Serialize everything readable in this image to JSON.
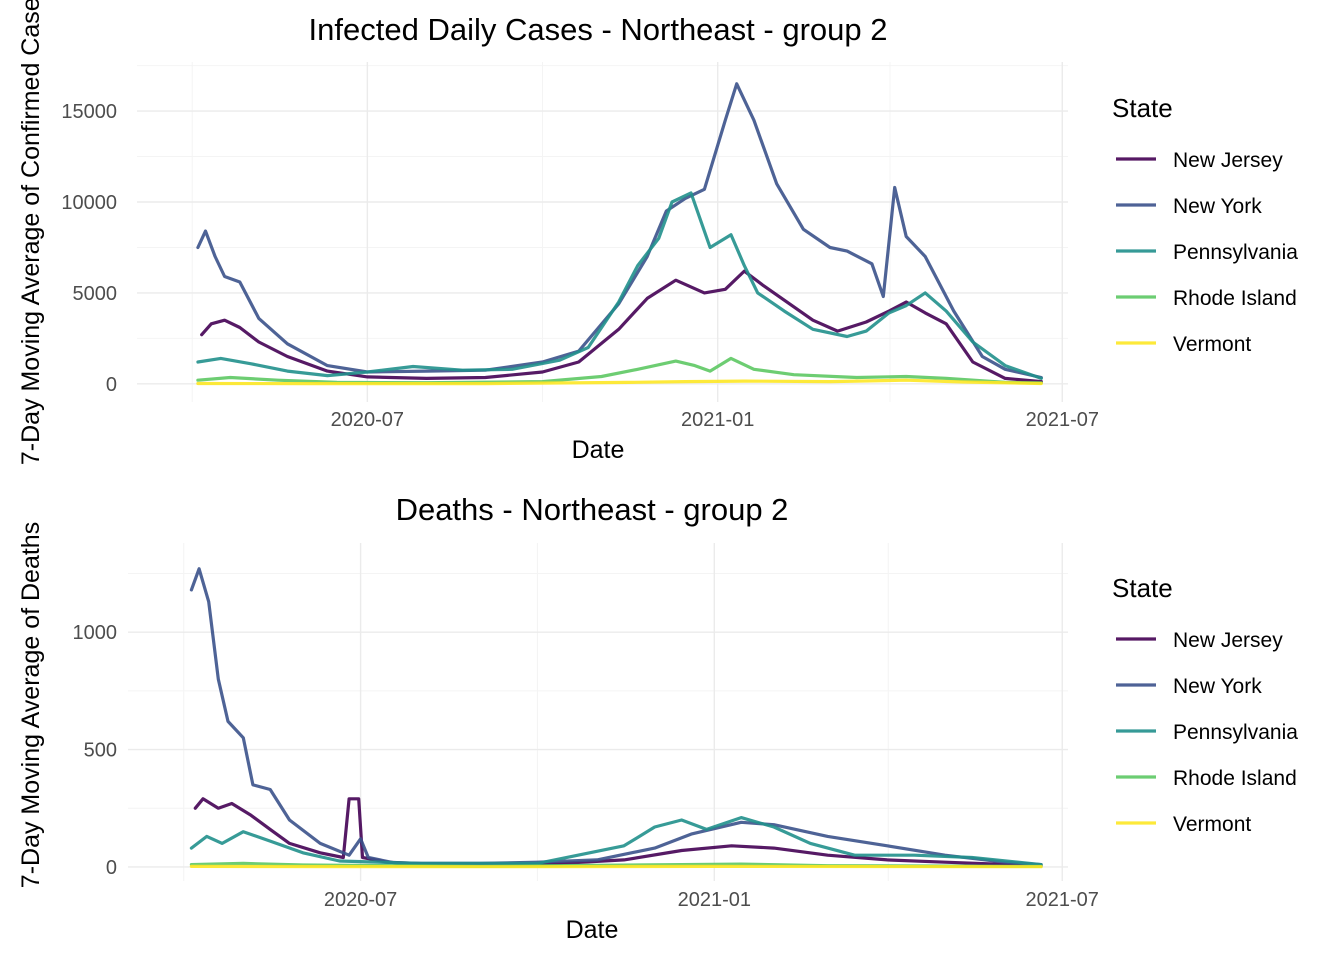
{
  "chart_data": [
    {
      "type": "line",
      "title": "Infected Daily Cases - Northeast - group 2",
      "xlabel": "Date",
      "ylabel": "7-Day Moving Average of Confirmed Cases",
      "x_ticks": [
        "2020-07",
        "2021-01",
        "2021-07"
      ],
      "y_ticks": [
        0,
        5000,
        10000,
        15000
      ],
      "ylim": [
        -1000,
        17700
      ],
      "xlim": [
        "2020-03-02",
        "2021-07-04"
      ],
      "legend_title": "State",
      "legend_position": "right",
      "grid": true,
      "series": [
        {
          "name": "New Jersey",
          "color": "#440154",
          "points": [
            [
              "2020-04-05",
              2700
            ],
            [
              "2020-04-10",
              3300
            ],
            [
              "2020-04-17",
              3500
            ],
            [
              "2020-04-25",
              3100
            ],
            [
              "2020-05-05",
              2300
            ],
            [
              "2020-05-20",
              1500
            ],
            [
              "2020-06-10",
              700
            ],
            [
              "2020-07-01",
              380
            ],
            [
              "2020-08-01",
              300
            ],
            [
              "2020-09-01",
              350
            ],
            [
              "2020-10-01",
              650
            ],
            [
              "2020-10-20",
              1200
            ],
            [
              "2020-11-10",
              3000
            ],
            [
              "2020-11-25",
              4700
            ],
            [
              "2020-12-10",
              5700
            ],
            [
              "2020-12-25",
              5000
            ],
            [
              "2021-01-05",
              5200
            ],
            [
              "2021-01-15",
              6200
            ],
            [
              "2021-01-25",
              5400
            ],
            [
              "2021-02-05",
              4600
            ],
            [
              "2021-02-20",
              3500
            ],
            [
              "2021-03-05",
              2900
            ],
            [
              "2021-03-20",
              3400
            ],
            [
              "2021-04-01",
              4000
            ],
            [
              "2021-04-10",
              4500
            ],
            [
              "2021-04-20",
              3900
            ],
            [
              "2021-05-01",
              3300
            ],
            [
              "2021-05-15",
              1200
            ],
            [
              "2021-06-01",
              300
            ],
            [
              "2021-06-20",
              120
            ]
          ]
        },
        {
          "name": "New York",
          "color": "#3b528b",
          "points": [
            [
              "2020-04-03",
              7500
            ],
            [
              "2020-04-07",
              8400
            ],
            [
              "2020-04-12",
              7000
            ],
            [
              "2020-04-17",
              5900
            ],
            [
              "2020-04-25",
              5600
            ],
            [
              "2020-05-05",
              3600
            ],
            [
              "2020-05-20",
              2200
            ],
            [
              "2020-06-10",
              1000
            ],
            [
              "2020-07-01",
              650
            ],
            [
              "2020-08-01",
              700
            ],
            [
              "2020-09-01",
              750
            ],
            [
              "2020-10-01",
              1200
            ],
            [
              "2020-10-20",
              1800
            ],
            [
              "2020-11-10",
              4400
            ],
            [
              "2020-11-25",
              7000
            ],
            [
              "2020-12-05",
              9500
            ],
            [
              "2020-12-15",
              10200
            ],
            [
              "2020-12-25",
              10700
            ],
            [
              "2021-01-05",
              14500
            ],
            [
              "2021-01-11",
              16500
            ],
            [
              "2021-01-20",
              14500
            ],
            [
              "2021-02-01",
              11000
            ],
            [
              "2021-02-15",
              8500
            ],
            [
              "2021-03-01",
              7500
            ],
            [
              "2021-03-10",
              7300
            ],
            [
              "2021-03-23",
              6600
            ],
            [
              "2021-03-29",
              4800
            ],
            [
              "2021-04-04",
              10800
            ],
            [
              "2021-04-10",
              8100
            ],
            [
              "2021-04-20",
              7000
            ],
            [
              "2021-05-05",
              4000
            ],
            [
              "2021-05-20",
              1500
            ],
            [
              "2021-06-01",
              800
            ],
            [
              "2021-06-20",
              350
            ]
          ]
        },
        {
          "name": "Pennsylvania",
          "color": "#21908c",
          "points": [
            [
              "2020-04-03",
              1200
            ],
            [
              "2020-04-15",
              1400
            ],
            [
              "2020-05-01",
              1100
            ],
            [
              "2020-05-20",
              700
            ],
            [
              "2020-06-10",
              450
            ],
            [
              "2020-07-01",
              650
            ],
            [
              "2020-07-25",
              950
            ],
            [
              "2020-08-20",
              750
            ],
            [
              "2020-09-15",
              800
            ],
            [
              "2020-10-10",
              1300
            ],
            [
              "2020-10-25",
              2000
            ],
            [
              "2020-11-10",
              4500
            ],
            [
              "2020-11-20",
              6500
            ],
            [
              "2020-12-01",
              8000
            ],
            [
              "2020-12-08",
              10000
            ],
            [
              "2020-12-18",
              10500
            ],
            [
              "2020-12-28",
              7500
            ],
            [
              "2021-01-08",
              8200
            ],
            [
              "2021-01-15",
              6500
            ],
            [
              "2021-01-22",
              5000
            ],
            [
              "2021-02-05",
              4000
            ],
            [
              "2021-02-20",
              3000
            ],
            [
              "2021-03-10",
              2600
            ],
            [
              "2021-03-20",
              2900
            ],
            [
              "2021-04-01",
              3900
            ],
            [
              "2021-04-10",
              4300
            ],
            [
              "2021-04-20",
              5000
            ],
            [
              "2021-05-01",
              4000
            ],
            [
              "2021-05-15",
              2300
            ],
            [
              "2021-06-01",
              1000
            ],
            [
              "2021-06-20",
              300
            ]
          ]
        },
        {
          "name": "Rhode Island",
          "color": "#5dc863",
          "points": [
            [
              "2020-04-03",
              200
            ],
            [
              "2020-04-20",
              350
            ],
            [
              "2020-05-15",
              200
            ],
            [
              "2020-06-15",
              80
            ],
            [
              "2020-08-01",
              60
            ],
            [
              "2020-10-01",
              120
            ],
            [
              "2020-11-01",
              400
            ],
            [
              "2020-11-20",
              800
            ],
            [
              "2020-12-10",
              1250
            ],
            [
              "2020-12-20",
              1000
            ],
            [
              "2020-12-28",
              700
            ],
            [
              "2021-01-08",
              1400
            ],
            [
              "2021-01-20",
              800
            ],
            [
              "2021-02-10",
              500
            ],
            [
              "2021-03-15",
              350
            ],
            [
              "2021-04-10",
              400
            ],
            [
              "2021-05-01",
              300
            ],
            [
              "2021-06-01",
              80
            ],
            [
              "2021-06-20",
              50
            ]
          ]
        },
        {
          "name": "Vermont",
          "color": "#fde725",
          "points": [
            [
              "2020-04-03",
              20
            ],
            [
              "2020-06-01",
              10
            ],
            [
              "2020-09-01",
              10
            ],
            [
              "2020-11-15",
              80
            ],
            [
              "2020-12-15",
              120
            ],
            [
              "2021-01-15",
              150
            ],
            [
              "2021-03-01",
              120
            ],
            [
              "2021-04-10",
              200
            ],
            [
              "2021-05-10",
              100
            ],
            [
              "2021-06-20",
              20
            ]
          ]
        }
      ]
    },
    {
      "type": "line",
      "title": "Deaths - Northeast - group 2",
      "xlabel": "Date",
      "ylabel": "7-Day Moving Average of Deaths",
      "x_ticks": [
        "2020-07",
        "2021-01",
        "2021-07"
      ],
      "y_ticks": [
        0,
        500,
        1000
      ],
      "ylim": [
        -60,
        1380
      ],
      "xlim": [
        "2020-03-02",
        "2021-07-04"
      ],
      "legend_title": "State",
      "legend_position": "right",
      "grid": true,
      "series": [
        {
          "name": "New Jersey",
          "color": "#440154",
          "points": [
            [
              "2020-04-06",
              250
            ],
            [
              "2020-04-10",
              290
            ],
            [
              "2020-04-18",
              250
            ],
            [
              "2020-04-25",
              270
            ],
            [
              "2020-05-05",
              220
            ],
            [
              "2020-05-15",
              160
            ],
            [
              "2020-05-25",
              100
            ],
            [
              "2020-06-10",
              60
            ],
            [
              "2020-06-22",
              40
            ],
            [
              "2020-06-25",
              290
            ],
            [
              "2020-06-30",
              290
            ],
            [
              "2020-07-02",
              40
            ],
            [
              "2020-07-15",
              20
            ],
            [
              "2020-08-15",
              10
            ],
            [
              "2020-10-01",
              10
            ],
            [
              "2020-11-15",
              30
            ],
            [
              "2020-12-15",
              70
            ],
            [
              "2021-01-10",
              90
            ],
            [
              "2021-02-01",
              80
            ],
            [
              "2021-03-01",
              50
            ],
            [
              "2021-04-01",
              30
            ],
            [
              "2021-05-01",
              20
            ],
            [
              "2021-06-20",
              5
            ]
          ]
        },
        {
          "name": "New York",
          "color": "#3b528b",
          "points": [
            [
              "2020-04-04",
              1180
            ],
            [
              "2020-04-08",
              1270
            ],
            [
              "2020-04-13",
              1130
            ],
            [
              "2020-04-18",
              800
            ],
            [
              "2020-04-23",
              620
            ],
            [
              "2020-05-01",
              550
            ],
            [
              "2020-05-06",
              350
            ],
            [
              "2020-05-15",
              330
            ],
            [
              "2020-05-25",
              200
            ],
            [
              "2020-06-10",
              100
            ],
            [
              "2020-06-25",
              50
            ],
            [
              "2020-07-01",
              120
            ],
            [
              "2020-07-05",
              40
            ],
            [
              "2020-07-20",
              15
            ],
            [
              "2020-09-01",
              15
            ],
            [
              "2020-10-01",
              20
            ],
            [
              "2020-11-01",
              30
            ],
            [
              "2020-12-01",
              80
            ],
            [
              "2020-12-20",
              140
            ],
            [
              "2021-01-15",
              190
            ],
            [
              "2021-02-01",
              180
            ],
            [
              "2021-03-01",
              130
            ],
            [
              "2021-04-01",
              90
            ],
            [
              "2021-05-01",
              50
            ],
            [
              "2021-06-01",
              20
            ],
            [
              "2021-06-20",
              10
            ]
          ]
        },
        {
          "name": "Pennsylvania",
          "color": "#21908c",
          "points": [
            [
              "2020-04-04",
              80
            ],
            [
              "2020-04-12",
              130
            ],
            [
              "2020-04-20",
              100
            ],
            [
              "2020-05-01",
              150
            ],
            [
              "2020-05-15",
              110
            ],
            [
              "2020-06-01",
              60
            ],
            [
              "2020-06-20",
              25
            ],
            [
              "2020-08-01",
              15
            ],
            [
              "2020-10-01",
              15
            ],
            [
              "2020-11-15",
              90
            ],
            [
              "2020-12-01",
              170
            ],
            [
              "2020-12-15",
              200
            ],
            [
              "2020-12-28",
              160
            ],
            [
              "2021-01-15",
              210
            ],
            [
              "2021-02-01",
              170
            ],
            [
              "2021-02-20",
              100
            ],
            [
              "2021-03-15",
              50
            ],
            [
              "2021-04-15",
              50
            ],
            [
              "2021-05-15",
              40
            ],
            [
              "2021-06-20",
              10
            ]
          ]
        },
        {
          "name": "Rhode Island",
          "color": "#5dc863",
          "points": [
            [
              "2020-04-04",
              10
            ],
            [
              "2020-05-01",
              15
            ],
            [
              "2020-06-01",
              8
            ],
            [
              "2020-09-01",
              2
            ],
            [
              "2020-12-15",
              10
            ],
            [
              "2021-01-15",
              12
            ],
            [
              "2021-03-01",
              5
            ],
            [
              "2021-06-20",
              2
            ]
          ]
        },
        {
          "name": "Vermont",
          "color": "#fde725",
          "points": [
            [
              "2020-04-04",
              2
            ],
            [
              "2020-09-01",
              1
            ],
            [
              "2021-01-01",
              2
            ],
            [
              "2021-06-20",
              1
            ]
          ]
        }
      ]
    }
  ]
}
